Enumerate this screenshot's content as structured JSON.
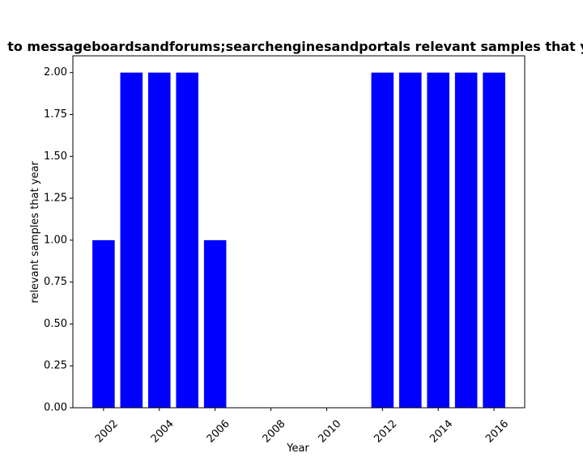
{
  "chart_data": {
    "type": "bar",
    "title": "to messageboardsandforums;searchenginesandportals relevant samples that y",
    "xlabel": "Year",
    "ylabel": "relevant samples that year",
    "x": [
      2002,
      2003,
      2004,
      2005,
      2006,
      2012,
      2013,
      2014,
      2015,
      2016
    ],
    "values": [
      1,
      2,
      2,
      2,
      1,
      2,
      2,
      2,
      2,
      2
    ],
    "xlim": [
      2000.9,
      2017.1
    ],
    "ylim": [
      0,
      2.1
    ],
    "xticks": [
      "2002",
      "2004",
      "2006",
      "2008",
      "2010",
      "2012",
      "2014",
      "2016"
    ],
    "yticks": [
      "0.00",
      "0.25",
      "0.50",
      "0.75",
      "1.00",
      "1.25",
      "1.50",
      "1.75",
      "2.00"
    ],
    "bar_color": "#0000ff",
    "grid": false,
    "legend": "none"
  }
}
